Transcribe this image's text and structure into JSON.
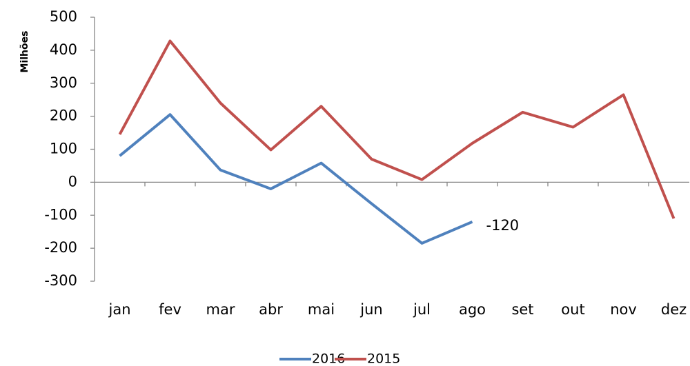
{
  "chart_data": {
    "type": "line",
    "y_label": "Milhões",
    "categories": [
      "jan",
      "fev",
      "mar",
      "abr",
      "mai",
      "jun",
      "jul",
      "ago",
      "set",
      "out",
      "nov",
      "dez"
    ],
    "series": [
      {
        "name": "2016",
        "color": "#4f81bd",
        "values": [
          80,
          205,
          37,
          -20,
          58,
          -65,
          -185,
          -120,
          null,
          null,
          null,
          null
        ]
      },
      {
        "name": "2015",
        "color": "#c0504d",
        "values": [
          145,
          428,
          240,
          98,
          230,
          70,
          8,
          118,
          212,
          167,
          265,
          -110
        ]
      }
    ],
    "ylim": [
      -300,
      500
    ],
    "yticks": [
      -300,
      -200,
      -100,
      0,
      100,
      200,
      300,
      400,
      500
    ],
    "legend": "bottom"
  }
}
